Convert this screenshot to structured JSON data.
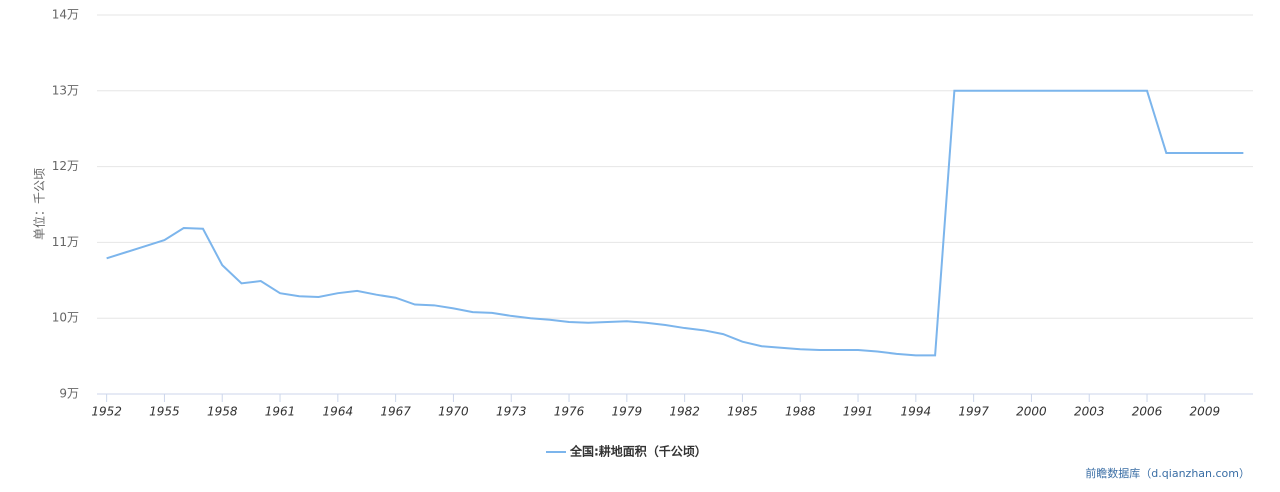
{
  "chart_data": {
    "type": "line",
    "y_axis_label": "单位：千公顷",
    "x": [
      1952,
      1953,
      1954,
      1955,
      1956,
      1957,
      1958,
      1959,
      1960,
      1961,
      1962,
      1963,
      1964,
      1965,
      1966,
      1967,
      1968,
      1969,
      1970,
      1971,
      1972,
      1973,
      1974,
      1975,
      1976,
      1977,
      1978,
      1979,
      1980,
      1981,
      1982,
      1983,
      1984,
      1985,
      1986,
      1987,
      1988,
      1989,
      1990,
      1991,
      1992,
      1993,
      1994,
      1995,
      1996,
      1997,
      1998,
      1999,
      2000,
      2001,
      2002,
      2003,
      2004,
      2005,
      2006,
      2007,
      2008,
      2009,
      2010,
      2011
    ],
    "series": [
      {
        "name": "全国:耕地面积（千公顷）",
        "color": "#7cb5ec",
        "values": [
          107900,
          108700,
          109500,
          110300,
          111900,
          111800,
          107000,
          104600,
          104900,
          103300,
          102900,
          102800,
          103300,
          103600,
          103100,
          102700,
          101800,
          101700,
          101300,
          100800,
          100700,
          100300,
          100000,
          99800,
          99500,
          99400,
          99500,
          99600,
          99400,
          99100,
          98700,
          98400,
          97900,
          96900,
          96300,
          96100,
          95900,
          95800,
          95800,
          95800,
          95600,
          95300,
          95100,
          95100,
          130000,
          130000,
          130000,
          130000,
          130000,
          130000,
          130000,
          130000,
          130000,
          130000,
          130000,
          121800,
          121800,
          121800,
          121800,
          121800
        ]
      }
    ],
    "xlim": [
      1951.5,
      2011.5
    ],
    "xticks": [
      1952,
      1955,
      1958,
      1961,
      1964,
      1967,
      1970,
      1973,
      1976,
      1979,
      1982,
      1985,
      1988,
      1991,
      1994,
      1997,
      2000,
      2003,
      2006,
      2009
    ],
    "ylim": [
      90000,
      140000
    ],
    "yticks": [
      {
        "value": 90000,
        "label": "9万"
      },
      {
        "value": 100000,
        "label": "10万"
      },
      {
        "value": 110000,
        "label": "11万"
      },
      {
        "value": 120000,
        "label": "12万"
      },
      {
        "value": 130000,
        "label": "13万"
      },
      {
        "value": 140000,
        "label": "14万"
      }
    ],
    "grid": true,
    "watermark": "前瞻数据库（d.qianzhan.com）"
  }
}
